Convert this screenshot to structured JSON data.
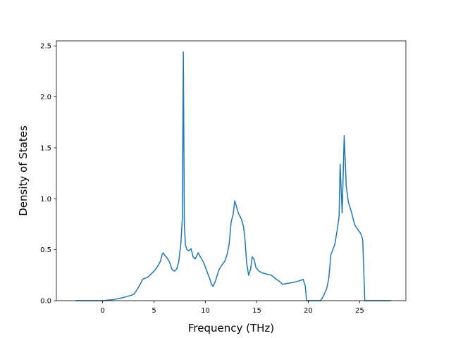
{
  "chart_data": {
    "type": "line",
    "title": "",
    "xlabel": "Frequency (THz)",
    "ylabel": "Density of States",
    "xlim": [
      -4.5,
      29.5
    ],
    "ylim": [
      0.0,
      2.55
    ],
    "xticks": [
      0,
      5,
      10,
      15,
      20,
      25
    ],
    "yticks": [
      0.0,
      0.5,
      1.0,
      1.5,
      2.0,
      2.5
    ],
    "grid": false,
    "legend": "none",
    "series": [
      {
        "color": "#1f77b4",
        "x": [
          -2.6,
          0.0,
          1.0,
          2.0,
          3.0,
          3.3,
          3.6,
          3.9,
          4.1,
          4.4,
          4.7,
          5.0,
          5.3,
          5.6,
          5.8,
          5.9,
          6.0,
          6.2,
          6.5,
          6.7,
          6.8,
          7.0,
          7.2,
          7.4,
          7.6,
          7.75,
          7.85,
          7.95,
          8.05,
          8.2,
          8.4,
          8.6,
          8.8,
          9.0,
          9.3,
          9.5,
          9.8,
          10.1,
          10.4,
          10.6,
          10.75,
          11.0,
          11.3,
          11.6,
          11.9,
          12.1,
          12.3,
          12.5,
          12.7,
          12.85,
          13.0,
          13.2,
          13.5,
          13.7,
          13.85,
          14.0,
          14.2,
          14.4,
          14.55,
          14.75,
          14.9,
          15.2,
          15.6,
          16.0,
          16.4,
          16.9,
          17.2,
          17.5,
          18.0,
          18.6,
          19.3,
          19.5,
          19.7,
          19.85,
          21.2,
          21.5,
          21.8,
          22.0,
          22.2,
          22.6,
          22.9,
          23.0,
          23.1,
          23.3,
          23.5,
          23.7,
          23.9,
          24.2,
          24.5,
          24.8,
          25.1,
          25.3,
          25.5,
          28.0
        ],
        "y": [
          0.0,
          0.0,
          0.01,
          0.03,
          0.06,
          0.1,
          0.15,
          0.21,
          0.22,
          0.23,
          0.26,
          0.29,
          0.33,
          0.38,
          0.46,
          0.47,
          0.45,
          0.43,
          0.38,
          0.32,
          0.3,
          0.29,
          0.31,
          0.38,
          0.55,
          0.8,
          2.44,
          0.75,
          0.55,
          0.5,
          0.49,
          0.51,
          0.43,
          0.41,
          0.47,
          0.43,
          0.38,
          0.3,
          0.22,
          0.16,
          0.14,
          0.2,
          0.3,
          0.35,
          0.39,
          0.45,
          0.55,
          0.77,
          0.85,
          0.98,
          0.93,
          0.86,
          0.8,
          0.73,
          0.6,
          0.38,
          0.25,
          0.31,
          0.43,
          0.4,
          0.33,
          0.29,
          0.27,
          0.26,
          0.25,
          0.21,
          0.19,
          0.16,
          0.17,
          0.18,
          0.2,
          0.21,
          0.15,
          0.0,
          0.0,
          0.05,
          0.12,
          0.22,
          0.45,
          0.56,
          0.75,
          0.83,
          1.34,
          0.86,
          1.62,
          1.12,
          0.97,
          0.87,
          0.75,
          0.7,
          0.66,
          0.6,
          0.0,
          0.0
        ]
      }
    ]
  }
}
